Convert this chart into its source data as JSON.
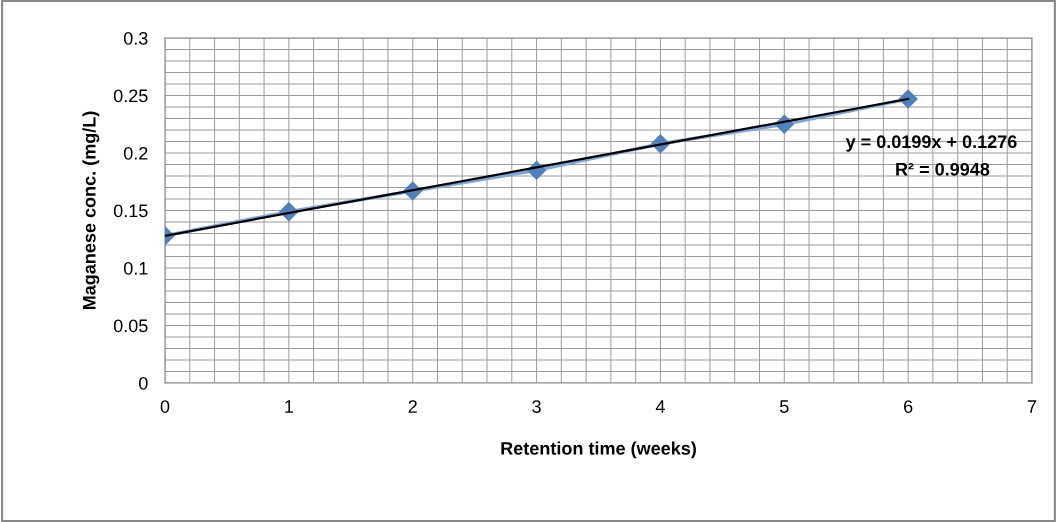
{
  "chart_data": {
    "type": "line",
    "xlabel": "Retention time (weeks)",
    "ylabel": "Maganese conc. (mg/L)",
    "x": [
      0,
      1,
      2,
      3,
      4,
      5,
      6
    ],
    "series": [
      {
        "color": "#4f81bd",
        "marker": "diamond",
        "values": [
          0.128,
          0.149,
          0.167,
          0.185,
          0.208,
          0.225,
          0.247
        ]
      },
      {
        "color": "#000000",
        "marker": "none",
        "x": [
          0,
          6
        ],
        "values": [
          0.128,
          0.247
        ]
      }
    ],
    "xlim": [
      0,
      7
    ],
    "ylim": [
      0,
      0.3
    ],
    "xticks": [
      0,
      {
        "value": 0.2,
        "label": null
      },
      {
        "value": 0.4,
        "label": null
      },
      {
        "value": 0.6,
        "label": null
      },
      {
        "value": 0.8,
        "label": null
      },
      1,
      {
        "value": 1.2,
        "label": null
      },
      {
        "value": 1.4,
        "label": null
      },
      {
        "value": 1.6,
        "label": null
      },
      {
        "value": 1.8,
        "label": null
      },
      2,
      {
        "value": 2.2,
        "label": null
      },
      {
        "value": 2.4,
        "label": null
      },
      {
        "value": 2.6,
        "label": null
      },
      {
        "value": 2.8,
        "label": null
      },
      3,
      {
        "value": 3.2,
        "label": null
      },
      {
        "value": 3.4,
        "label": null
      },
      {
        "value": 3.6,
        "label": null
      },
      {
        "value": 3.8,
        "label": null
      },
      4,
      {
        "value": 4.2,
        "label": null
      },
      {
        "value": 4.4,
        "label": null
      },
      {
        "value": 4.6,
        "label": null
      },
      {
        "value": 4.8,
        "label": null
      },
      5,
      {
        "value": 5.2,
        "label": null
      },
      {
        "value": 5.4,
        "label": null
      },
      {
        "value": 5.6,
        "label": null
      },
      {
        "value": 5.8,
        "label": null
      },
      6,
      {
        "value": 6.2,
        "label": null
      },
      {
        "value": 6.4,
        "label": null
      },
      {
        "value": 6.6,
        "label": null
      },
      {
        "value": 6.8,
        "label": null
      },
      7
    ],
    "yticks": [
      0,
      {
        "value": 0.01,
        "label": null
      },
      {
        "value": 0.02,
        "label": null
      },
      {
        "value": 0.03,
        "label": null
      },
      {
        "value": 0.04,
        "label": null
      },
      0.05,
      {
        "value": 0.06,
        "label": null
      },
      {
        "value": 0.07,
        "label": null
      },
      {
        "value": 0.08,
        "label": null
      },
      {
        "value": 0.09,
        "label": null
      },
      0.1,
      {
        "value": 0.11,
        "label": null
      },
      {
        "value": 0.12,
        "label": null
      },
      {
        "value": 0.13,
        "label": null
      },
      {
        "value": 0.14,
        "label": null
      },
      0.15,
      {
        "value": 0.16,
        "label": null
      },
      {
        "value": 0.17,
        "label": null
      },
      {
        "value": 0.18,
        "label": null
      },
      {
        "value": 0.19,
        "label": null
      },
      0.2,
      {
        "value": 0.21,
        "label": null
      },
      {
        "value": 0.22,
        "label": null
      },
      {
        "value": 0.23,
        "label": null
      },
      {
        "value": 0.24,
        "label": null
      },
      0.25,
      {
        "value": 0.26,
        "label": null
      },
      {
        "value": 0.27,
        "label": null
      },
      {
        "value": 0.28,
        "label": null
      },
      {
        "value": 0.29,
        "label": null
      },
      0.3
    ],
    "grid": true,
    "annotations": [
      "y = 0.0199x + 0.1276",
      "R² = 0.9948"
    ]
  }
}
